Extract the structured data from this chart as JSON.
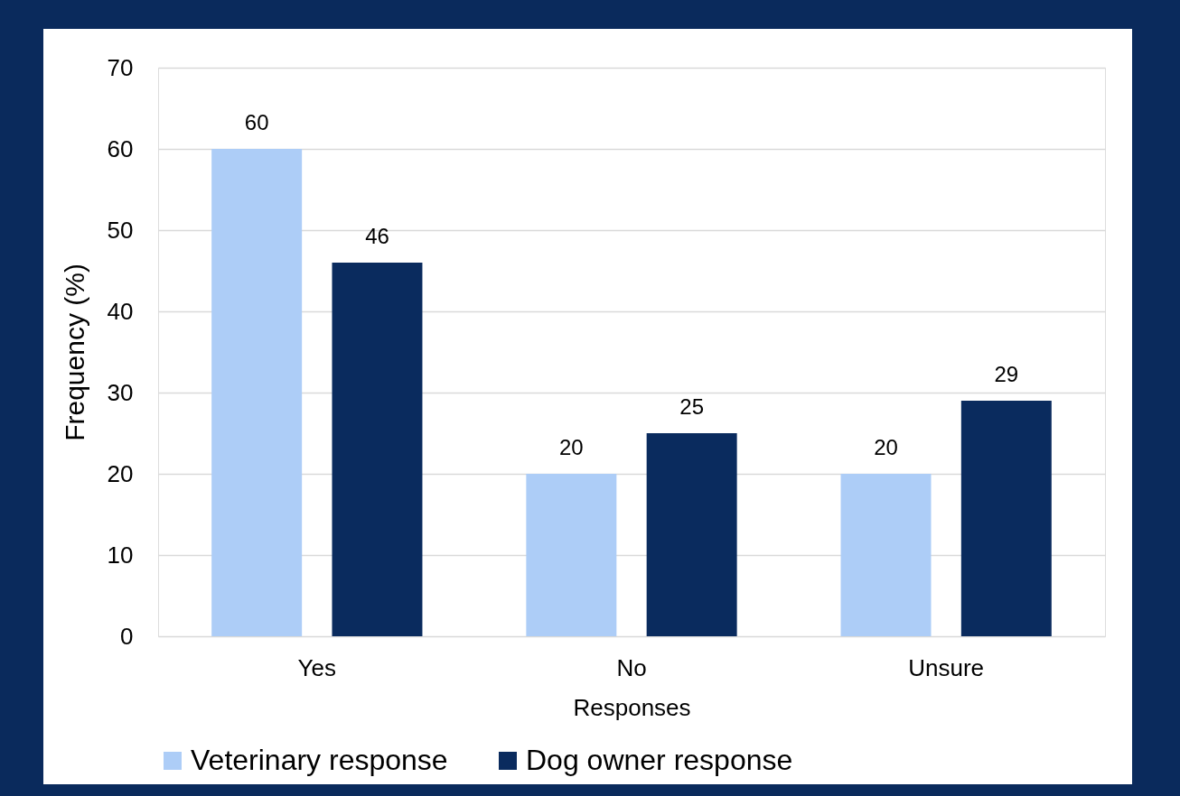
{
  "chart_data": {
    "type": "bar",
    "xlabel": "Responses",
    "ylabel": "Frequency (%)",
    "categories": [
      "Yes",
      "No",
      "Unsure"
    ],
    "series": [
      {
        "name": "Veterinary response",
        "color": "#adcdf7",
        "values": [
          60,
          20,
          20
        ]
      },
      {
        "name": "Dog owner response",
        "color": "#0a2b5e",
        "values": [
          46,
          25,
          29
        ]
      }
    ],
    "ylim": [
      0,
      70
    ],
    "yticks": [
      0,
      10,
      20,
      30,
      40,
      50,
      60,
      70
    ],
    "grid": "y",
    "legend": "bottom",
    "data_labels": true
  }
}
